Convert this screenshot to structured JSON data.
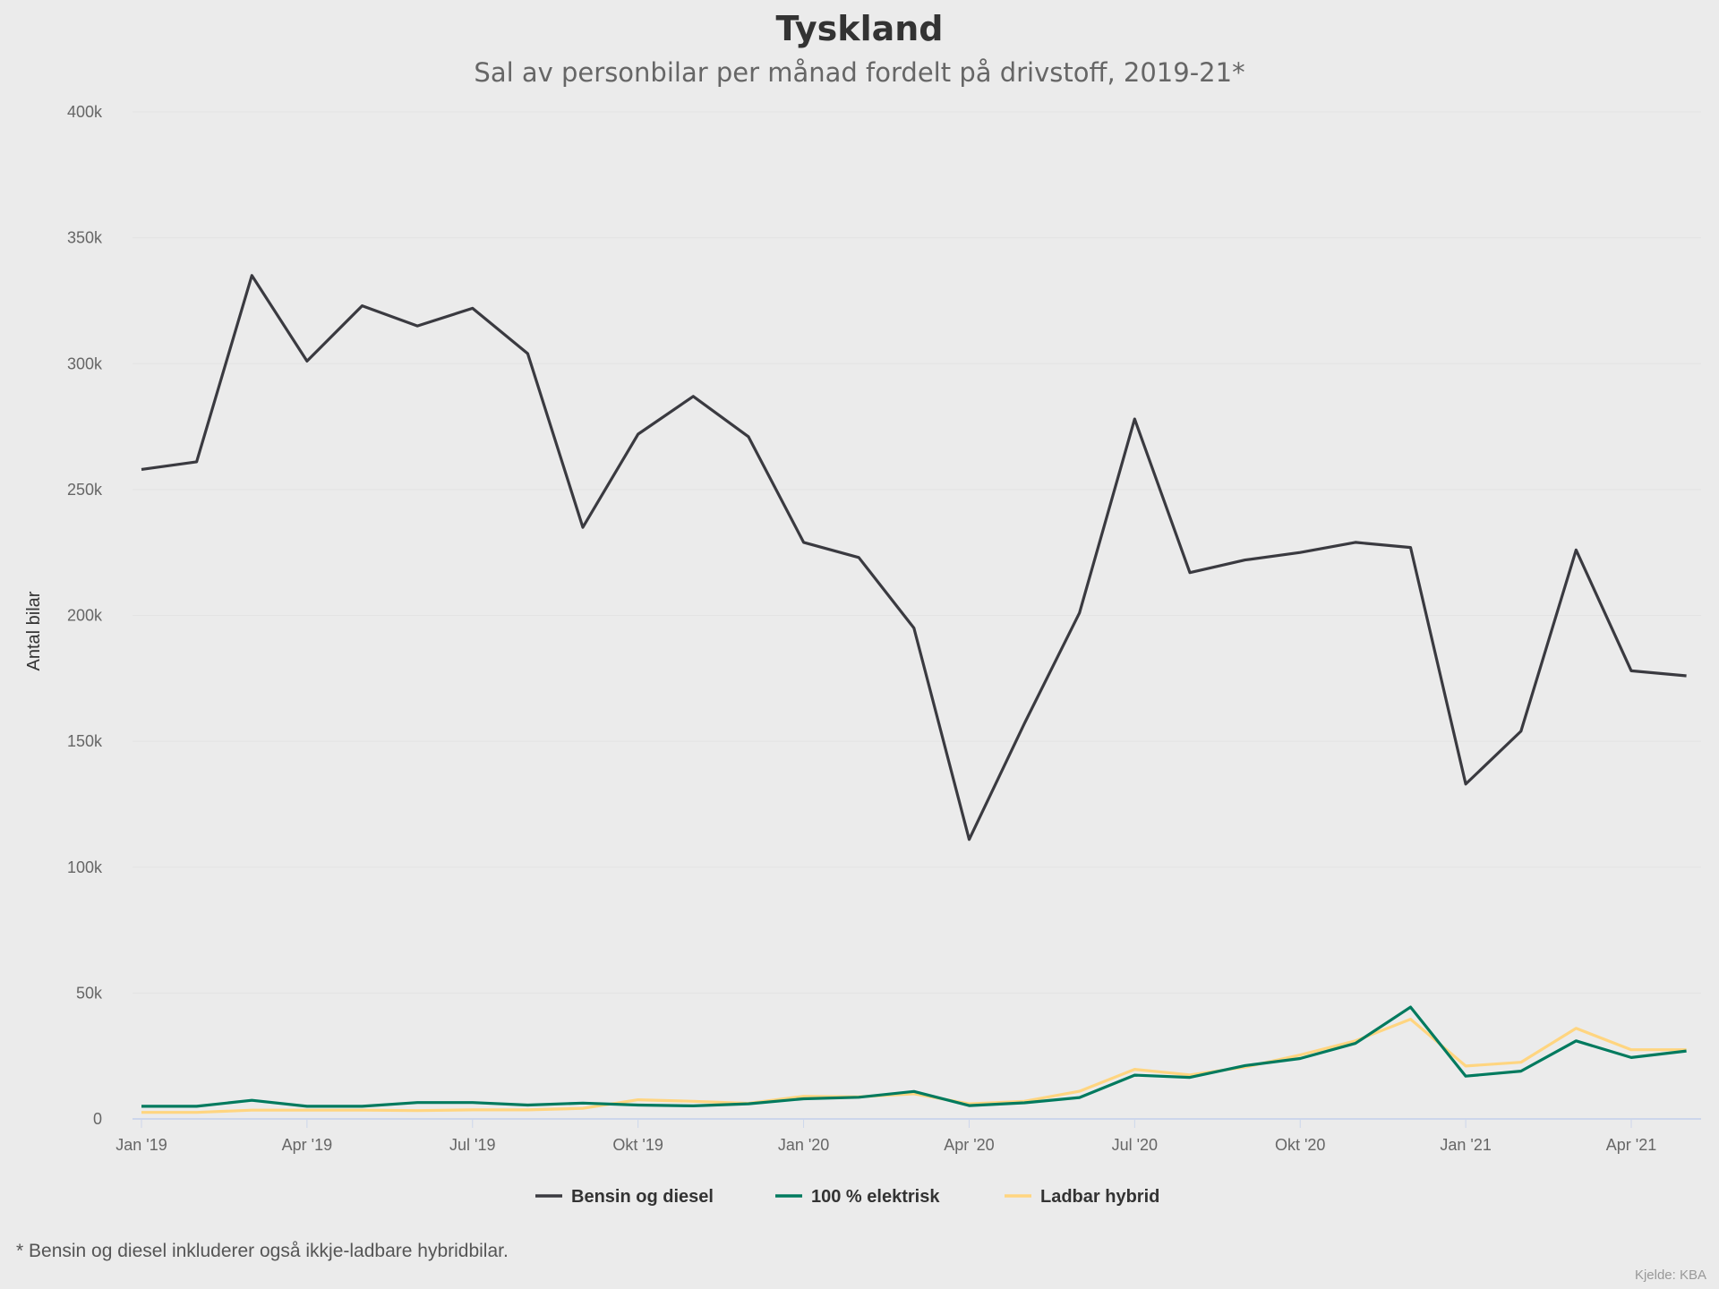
{
  "title": "Tyskland",
  "subtitle": "Sal av personbilar per månad fordelt på drivstoff, 2019-21*",
  "footnote": "* Bensin og diesel inkluderer også ikkje-ladbare hybridbilar.",
  "source": "Kjelde: KBA",
  "chart_data": {
    "type": "line",
    "ylabel": "Antal bilar",
    "ylim": [
      0,
      400000
    ],
    "yticks": [
      0,
      50000,
      100000,
      150000,
      200000,
      250000,
      300000,
      350000,
      400000
    ],
    "ytick_labels": [
      "0",
      "50k",
      "100k",
      "150k",
      "200k",
      "250k",
      "300k",
      "350k",
      "400k"
    ],
    "xtick_labels": [
      "Jan '19",
      "Apr '19",
      "Jul '19",
      "Okt '19",
      "Jan '20",
      "Apr '20",
      "Jul '20",
      "Okt '20",
      "Jan '21",
      "Apr '21"
    ],
    "x": [
      "2019-01",
      "2019-02",
      "2019-03",
      "2019-04",
      "2019-05",
      "2019-06",
      "2019-07",
      "2019-08",
      "2019-09",
      "2019-10",
      "2019-11",
      "2019-12",
      "2020-01",
      "2020-02",
      "2020-03",
      "2020-04",
      "2020-05",
      "2020-06",
      "2020-07",
      "2020-08",
      "2020-09",
      "2020-10",
      "2020-11",
      "2020-12",
      "2021-01",
      "2021-02",
      "2021-03",
      "2021-04",
      "2021-05"
    ],
    "grid": true,
    "legend": "bottom",
    "series": [
      {
        "name": "Bensin og diesel",
        "color": "#3a3a40",
        "values": [
          258000,
          261000,
          335000,
          301000,
          323000,
          315000,
          322000,
          304000,
          235000,
          272000,
          287000,
          271000,
          229000,
          223000,
          195000,
          111000,
          157000,
          201000,
          278000,
          217000,
          222000,
          225000,
          229000,
          227000,
          133000,
          154000,
          226000,
          178000,
          176000
        ]
      },
      {
        "name": "100 % elektrisk",
        "color": "#007a5e",
        "values": [
          5000,
          5000,
          7400,
          5000,
          5000,
          6500,
          6500,
          5500,
          6300,
          5500,
          5200,
          6000,
          8000,
          8600,
          10900,
          5300,
          6400,
          8500,
          17400,
          16500,
          21200,
          24000,
          30000,
          44400,
          17000,
          19000,
          31000,
          24400,
          27000
        ]
      },
      {
        "name": "Ladbar hybrid",
        "color": "#ffd580",
        "values": [
          2600,
          2600,
          3500,
          3500,
          3500,
          3300,
          3600,
          3600,
          4200,
          7600,
          7000,
          6200,
          9000,
          8800,
          10000,
          6000,
          7000,
          11000,
          19700,
          17500,
          20600,
          25400,
          31000,
          39600,
          21000,
          22500,
          36000,
          27500,
          27500
        ]
      }
    ]
  }
}
